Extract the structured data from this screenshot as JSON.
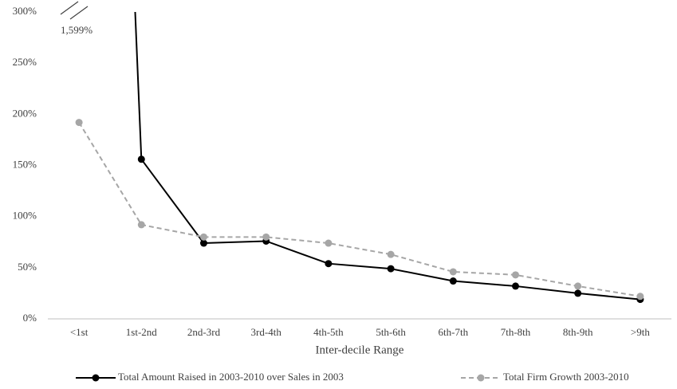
{
  "chart_data": {
    "type": "line",
    "x_label": "Inter-decile Range",
    "categories": [
      "<1st",
      "1st-2nd",
      "2nd-3rd",
      "3rd-4th",
      "4th-5th",
      "5th-6th",
      "6th-7th",
      "7th-8th",
      "8th-9th",
      ">9th"
    ],
    "series": [
      {
        "name": "Total Amount Raised in 2003-2010 over Sales in 2003",
        "color": "#000000",
        "line_style": "solid",
        "values": [
          1599,
          156,
          74,
          76,
          54,
          49,
          37,
          32,
          25,
          19
        ],
        "value_labels": [
          "1,599%",
          null,
          null,
          null,
          null,
          null,
          null,
          null,
          null,
          null
        ]
      },
      {
        "name": "Total Firm Growth 2003-2010",
        "color": "#a6a6a6",
        "line_style": "dashed",
        "values": [
          192,
          92,
          80,
          80,
          74,
          63,
          46,
          43,
          32,
          22
        ]
      }
    ],
    "ylim": [
      0,
      300
    ],
    "yticks": [
      {
        "value": 0,
        "label": "0%"
      },
      {
        "value": 50,
        "label": "50%"
      },
      {
        "value": 100,
        "label": "100%"
      },
      {
        "value": 150,
        "label": "150%"
      },
      {
        "value": 200,
        "label": "200%"
      },
      {
        "value": 250,
        "label": "250%"
      },
      {
        "value": 300,
        "label": "300%"
      }
    ],
    "grid": false
  }
}
